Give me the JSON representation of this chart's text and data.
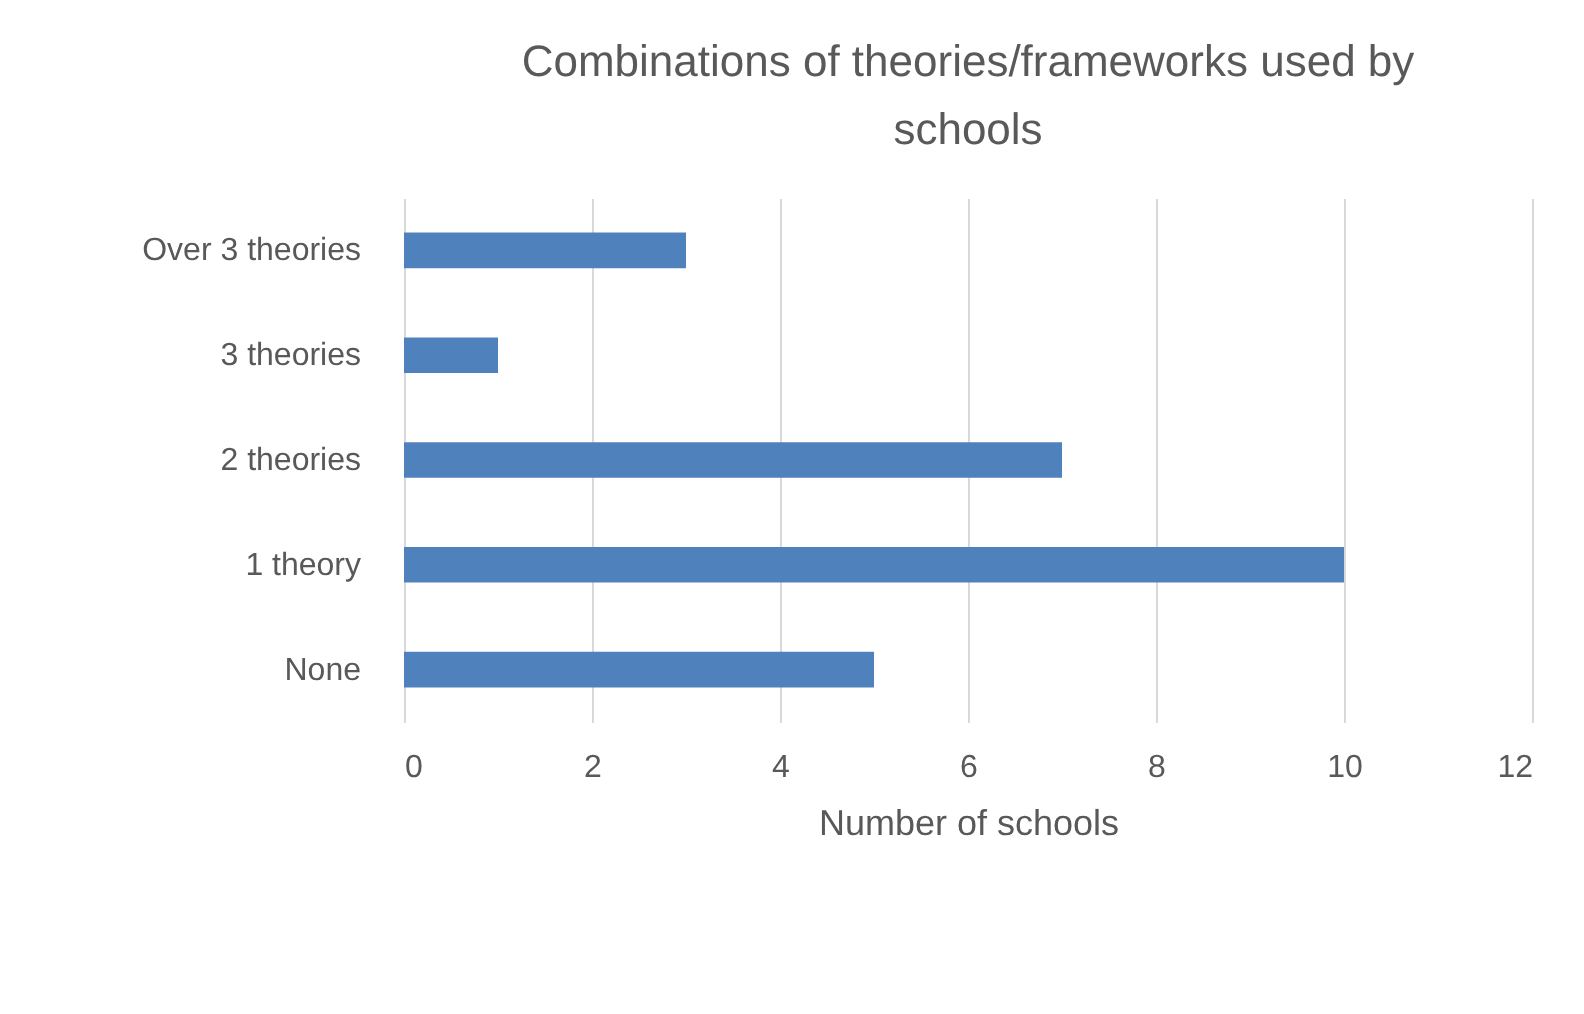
{
  "chart_data": {
    "type": "bar",
    "orientation": "horizontal",
    "title": "Combinations of theories/frameworks used by schools",
    "xlabel": "Number of schools",
    "categories": [
      "Over 3 theories",
      "3 theories",
      "2 theories",
      "1 theory",
      "None"
    ],
    "values": [
      3,
      1,
      7,
      10,
      5
    ],
    "color": "#4f81bd",
    "xlim": [
      0,
      12
    ],
    "xticks": [
      0,
      2,
      4,
      6,
      8,
      10,
      12
    ],
    "grid": "x"
  }
}
